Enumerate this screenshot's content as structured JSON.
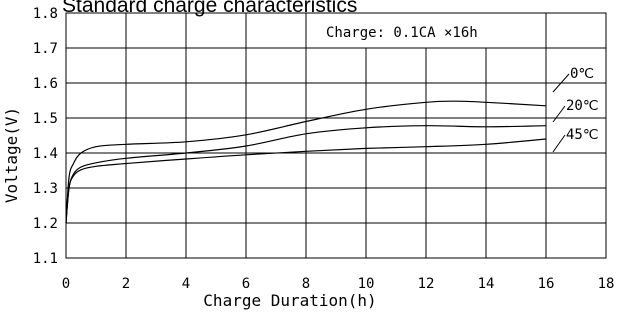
{
  "chart_data": {
    "type": "line",
    "title": "Standard charge characteristics",
    "annotation": "Charge: 0.1CA ×16h",
    "xlabel": "Charge Duration(h)",
    "ylabel": "Voltage(V)",
    "xlim": [
      0,
      18
    ],
    "ylim": [
      1.1,
      1.8
    ],
    "x_ticks": [
      "0",
      "2",
      "4",
      "6",
      "8",
      "10",
      "12",
      "14",
      "16",
      "18"
    ],
    "y_ticks": [
      "1.1",
      "1.2",
      "1.3",
      "1.4",
      "1.5",
      "1.6",
      "1.7",
      "1.8"
    ],
    "grid": true,
    "series": [
      {
        "name": "0℃",
        "x": [
          0,
          0.1,
          0.25,
          0.5,
          1,
          2,
          4,
          6,
          8,
          10,
          12,
          13,
          14,
          16
        ],
        "y": [
          1.2,
          1.33,
          1.37,
          1.4,
          1.418,
          1.425,
          1.432,
          1.452,
          1.49,
          1.525,
          1.545,
          1.548,
          1.545,
          1.535
        ]
      },
      {
        "name": "20℃",
        "x": [
          0,
          0.1,
          0.25,
          0.5,
          1,
          2,
          4,
          6,
          8,
          10,
          12,
          14,
          16
        ],
        "y": [
          1.2,
          1.3,
          1.34,
          1.36,
          1.372,
          1.385,
          1.4,
          1.42,
          1.455,
          1.472,
          1.478,
          1.475,
          1.478
        ]
      },
      {
        "name": "45℃",
        "x": [
          0,
          0.1,
          0.25,
          0.5,
          1,
          2,
          4,
          6,
          8,
          10,
          12,
          14,
          16
        ],
        "y": [
          1.2,
          1.3,
          1.335,
          1.352,
          1.362,
          1.37,
          1.383,
          1.395,
          1.405,
          1.413,
          1.418,
          1.425,
          1.44
        ]
      }
    ]
  }
}
